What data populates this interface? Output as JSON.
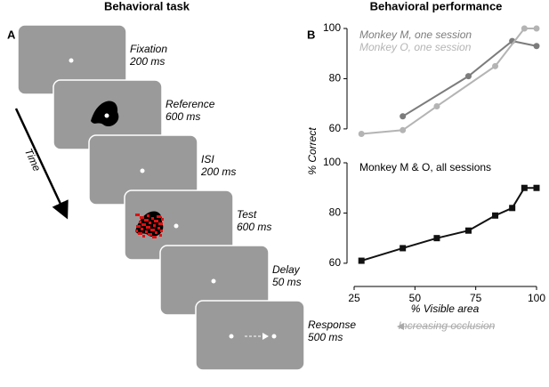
{
  "panel_labels": [
    "A",
    "B"
  ],
  "task": {
    "title": "Behavioral task",
    "time_label": "Time",
    "epochs": [
      {
        "name": "Fixation",
        "duration": "200 ms"
      },
      {
        "name": "Reference",
        "duration": "600 ms"
      },
      {
        "name": "ISI",
        "duration": "200 ms"
      },
      {
        "name": "Test",
        "duration": "600 ms"
      },
      {
        "name": "Delay",
        "duration": "50 ms"
      },
      {
        "name": "Response",
        "duration": "500 ms"
      }
    ]
  },
  "chart_data": [
    {
      "type": "line",
      "title": "Behavioral performance",
      "ylabel": "% Correct",
      "xlim": [
        25,
        100
      ],
      "ylim": [
        55,
        100
      ],
      "yticks": [
        60,
        80,
        100
      ],
      "series": [
        {
          "name": "Monkey M, one session",
          "color": "#7c7c7c",
          "x": [
            45,
            72,
            90,
            100
          ],
          "values": [
            65,
            81,
            95,
            93
          ]
        },
        {
          "name": "Monkey O, one session",
          "color": "#b4b4b4",
          "x": [
            28,
            45,
            59,
            83,
            95,
            100
          ],
          "values": [
            58,
            59.5,
            69,
            85,
            100,
            100
          ]
        }
      ]
    },
    {
      "type": "line",
      "annotation": "Monkey M & O, all sessions",
      "xlabel": "% Visible area",
      "footnote": "Increasing occlusion",
      "xlim": [
        25,
        100
      ],
      "xticks": [
        25,
        50,
        75,
        100
      ],
      "ylim": [
        55,
        100
      ],
      "yticks": [
        60,
        80,
        100
      ],
      "series": [
        {
          "name": "Monkey M & O",
          "color": "#111111",
          "x": [
            28,
            45,
            59,
            72,
            83,
            90,
            95,
            100
          ],
          "values": [
            61,
            66,
            70,
            73,
            79,
            82,
            90,
            90
          ]
        }
      ]
    }
  ]
}
